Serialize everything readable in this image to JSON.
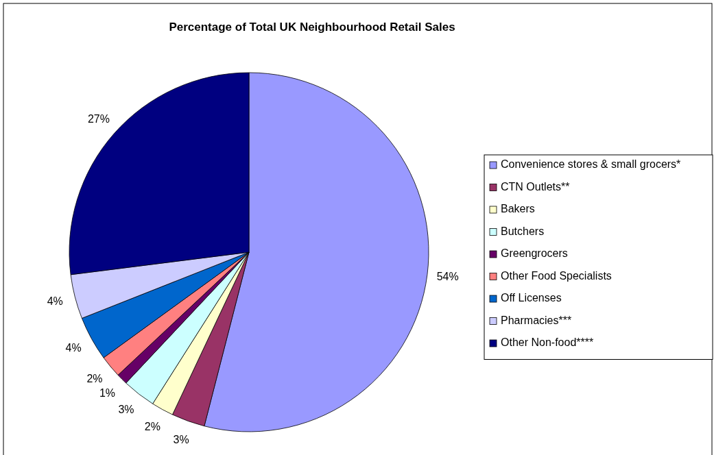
{
  "chart_data": {
    "type": "pie",
    "title": "Percentage of Total UK Neighbourhood Retail Sales",
    "categories": [
      "Convenience stores & small grocers*",
      "CTN Outlets**",
      "Bakers",
      "Butchers",
      "Greengrocers",
      "Other Food Specialists",
      "Off Licenses",
      "Pharmacies***",
      "Other Non-food****"
    ],
    "values": [
      54,
      3,
      2,
      3,
      1,
      2,
      4,
      4,
      27
    ],
    "colors": [
      "#9999ff",
      "#993366",
      "#ffffcc",
      "#ccffff",
      "#660066",
      "#ff8080",
      "#0066cc",
      "#ccccff",
      "#000080"
    ],
    "value_labels": [
      "54%",
      "3%",
      "2%",
      "3%",
      "1%",
      "2%",
      "4%",
      "4%",
      "27%"
    ],
    "legend": "right"
  }
}
